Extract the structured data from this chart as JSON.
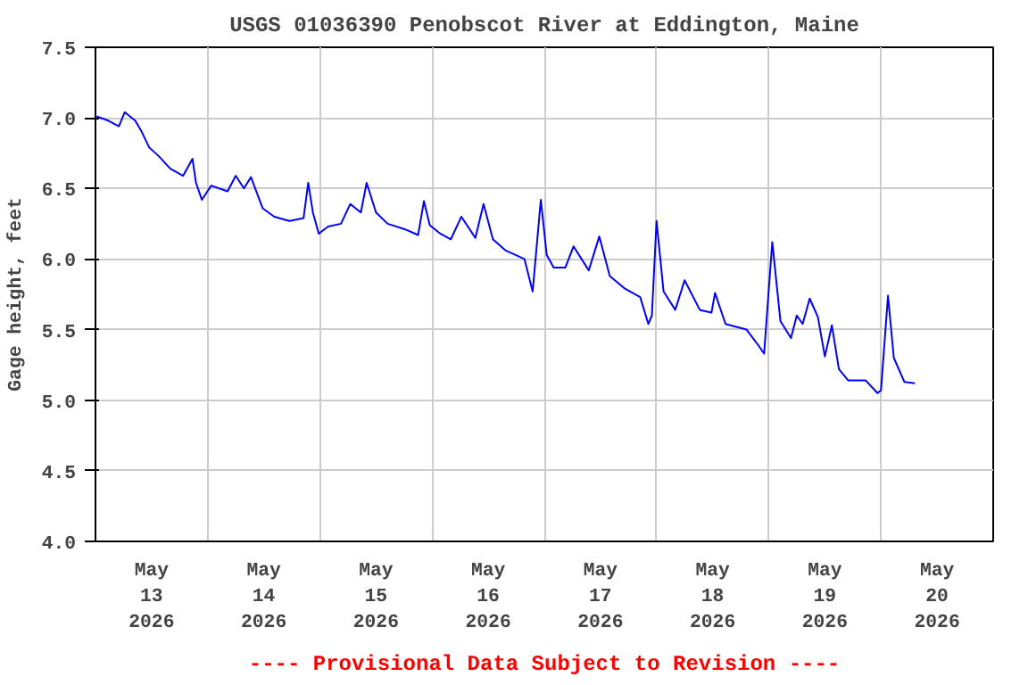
{
  "chart_data": {
    "type": "line",
    "title": "USGS 01036390 Penobscot River at Eddington, Maine",
    "ylabel": "Gage height, feet",
    "annotations": [
      "---- Provisional Data Subject to Revision ----"
    ],
    "x": [
      "2026-05-13T00:15",
      "2026-05-13T02:45",
      "2026-05-13T05:00",
      "2026-05-13T06:15",
      "2026-05-13T08:30",
      "2026-05-13T09:45",
      "2026-05-13T11:30",
      "2026-05-13T13:30",
      "2026-05-13T16:00",
      "2026-05-13T18:45",
      "2026-05-13T20:45",
      "2026-05-13T21:30",
      "2026-05-13T22:45",
      "2026-05-14T00:45",
      "2026-05-14T04:15",
      "2026-05-14T06:00",
      "2026-05-14T07:45",
      "2026-05-14T09:15",
      "2026-05-14T11:45",
      "2026-05-14T14:15",
      "2026-05-14T17:30",
      "2026-05-14T20:30",
      "2026-05-14T21:30",
      "2026-05-14T22:30",
      "2026-05-14T23:45",
      "2026-05-15T01:45",
      "2026-05-15T04:30",
      "2026-05-15T06:30",
      "2026-05-15T08:45",
      "2026-05-15T10:00",
      "2026-05-15T12:00",
      "2026-05-15T14:30",
      "2026-05-15T18:15",
      "2026-05-15T21:00",
      "2026-05-15T22:15",
      "2026-05-15T23:30",
      "2026-05-16T01:45",
      "2026-05-16T04:00",
      "2026-05-16T06:15",
      "2026-05-16T09:15",
      "2026-05-16T11:00",
      "2026-05-16T13:00",
      "2026-05-16T15:45",
      "2026-05-16T19:45",
      "2026-05-16T21:30",
      "2026-05-16T23:15",
      "2026-05-17T00:30",
      "2026-05-17T02:00",
      "2026-05-17T04:30",
      "2026-05-17T06:15",
      "2026-05-17T09:30",
      "2026-05-17T11:45",
      "2026-05-17T14:00",
      "2026-05-17T17:15",
      "2026-05-17T20:30",
      "2026-05-17T22:15",
      "2026-05-17T23:00",
      "2026-05-18T00:00",
      "2026-05-18T01:30",
      "2026-05-18T04:00",
      "2026-05-18T06:00",
      "2026-05-18T09:15",
      "2026-05-18T11:45",
      "2026-05-18T12:30",
      "2026-05-18T14:45",
      "2026-05-18T19:15",
      "2026-05-18T21:45",
      "2026-05-18T23:00",
      "2026-05-19T00:45",
      "2026-05-19T02:30",
      "2026-05-19T04:45",
      "2026-05-19T06:00",
      "2026-05-19T07:15",
      "2026-05-19T08:45",
      "2026-05-19T10:30",
      "2026-05-19T12:00",
      "2026-05-19T13:30",
      "2026-05-19T15:00",
      "2026-05-19T17:00",
      "2026-05-19T20:45",
      "2026-05-19T23:15",
      "2026-05-20T00:00",
      "2026-05-20T01:30",
      "2026-05-20T02:45",
      "2026-05-20T05:00",
      "2026-05-20T07:15"
    ],
    "series": [
      {
        "color": "#0000ff",
        "values": [
          7.01,
          6.98,
          6.94,
          7.04,
          6.98,
          6.91,
          6.79,
          6.73,
          6.64,
          6.59,
          6.71,
          6.54,
          6.42,
          6.52,
          6.48,
          6.59,
          6.5,
          6.58,
          6.36,
          6.3,
          6.27,
          6.29,
          6.54,
          6.33,
          6.18,
          6.23,
          6.25,
          6.39,
          6.33,
          6.54,
          6.33,
          6.25,
          6.21,
          6.17,
          6.41,
          6.24,
          6.18,
          6.14,
          6.3,
          6.15,
          6.39,
          6.14,
          6.06,
          6.0,
          5.77,
          6.42,
          6.03,
          5.94,
          5.94,
          6.09,
          5.92,
          6.16,
          5.88,
          5.79,
          5.73,
          5.54,
          5.6,
          6.27,
          5.77,
          5.64,
          5.85,
          5.64,
          5.62,
          5.76,
          5.54,
          5.5,
          5.39,
          5.33,
          6.12,
          5.56,
          5.44,
          5.6,
          5.54,
          5.72,
          5.59,
          5.31,
          5.53,
          5.22,
          5.14,
          5.14,
          5.05,
          5.07,
          5.74,
          5.3,
          5.13,
          5.12
        ]
      }
    ],
    "xlim": [
      "2026-05-13",
      "2026-05-21"
    ],
    "xticks": [
      {
        "value": "2026-05-13",
        "label": null
      },
      {
        "value": "2026-05-13T12:00",
        "label": "May\n13\n2026"
      },
      {
        "value": "2026-05-14",
        "label": null
      },
      {
        "value": "2026-05-14T12:00",
        "label": "May\n14\n2026"
      },
      {
        "value": "2026-05-15",
        "label": null
      },
      {
        "value": "2026-05-15T12:00",
        "label": "May\n15\n2026"
      },
      {
        "value": "2026-05-16",
        "label": null
      },
      {
        "value": "2026-05-16T12:00",
        "label": "May\n16\n2026"
      },
      {
        "value": "2026-05-17",
        "label": null
      },
      {
        "value": "2026-05-17T12:00",
        "label": "May\n17\n2026"
      },
      {
        "value": "2026-05-18",
        "label": null
      },
      {
        "value": "2026-05-18T12:00",
        "label": "May\n18\n2026"
      },
      {
        "value": "2026-05-19",
        "label": null
      },
      {
        "value": "2026-05-19T12:00",
        "label": "May\n19\n2026"
      },
      {
        "value": "2026-05-20",
        "label": null
      },
      {
        "value": "2026-05-20T12:00",
        "label": "May\n20\n2026"
      },
      {
        "value": "2026-05-21",
        "label": null
      }
    ],
    "ylim": [
      4.0,
      7.5
    ],
    "yticks": [
      {
        "value": 4.0,
        "label": "4.0"
      },
      {
        "value": 4.5,
        "label": "4.5"
      },
      {
        "value": 5.0,
        "label": "5.0"
      },
      {
        "value": 5.5,
        "label": "5.5"
      },
      {
        "value": 6.0,
        "label": "6.0"
      },
      {
        "value": 6.5,
        "label": "6.5"
      },
      {
        "value": 7.0,
        "label": "7.0"
      },
      {
        "value": 7.5,
        "label": "7.5"
      }
    ],
    "grid": true,
    "line_style": "solid",
    "marker": "none"
  }
}
